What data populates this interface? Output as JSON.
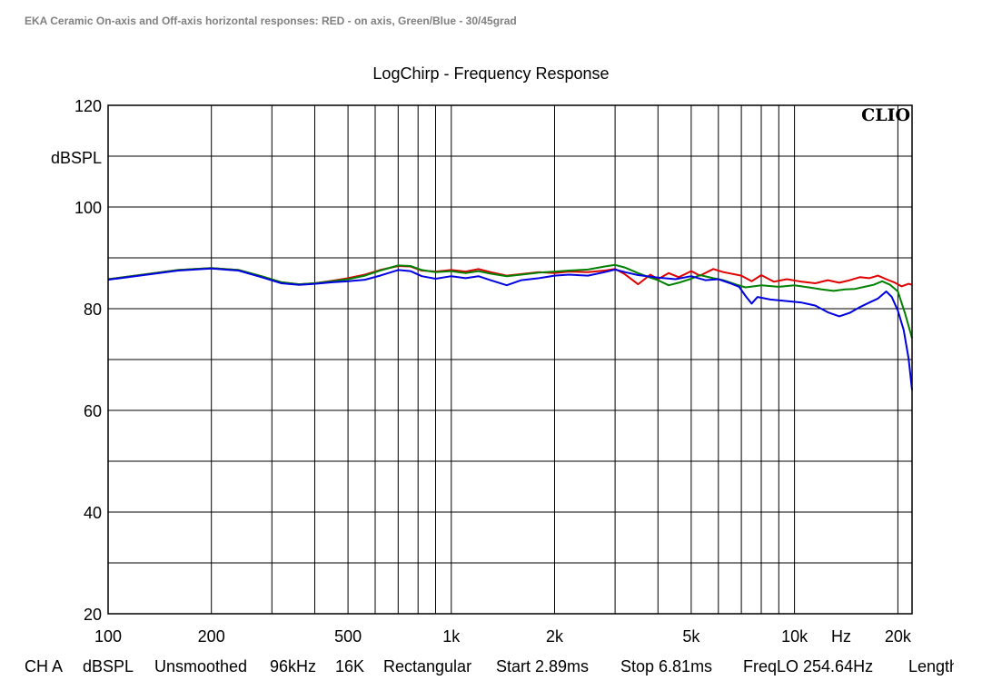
{
  "caption": "EKA Ceramic On-axis and Off-axis horizontal responses: RED - on axis, Green/Blue - 30/45grad",
  "logo_text": "CLIO",
  "chart_data": {
    "type": "line",
    "title": "LogChirp - Frequency Response",
    "ylabel": "dBSPL",
    "xlabel_unit": "Hz",
    "x_scale": "log",
    "xlim": [
      100,
      22000
    ],
    "ylim": [
      20,
      120
    ],
    "grid": true,
    "y_ticks": [
      20,
      40,
      60,
      80,
      100,
      120
    ],
    "x_ticks": [
      {
        "v": 100,
        "label": "100"
      },
      {
        "v": 200,
        "label": "200"
      },
      {
        "v": 500,
        "label": "500"
      },
      {
        "v": 1000,
        "label": "1k"
      },
      {
        "v": 2000,
        "label": "2k"
      },
      {
        "v": 5000,
        "label": "5k"
      },
      {
        "v": 10000,
        "label": "10k"
      },
      {
        "v": 20000,
        "label": "20k"
      }
    ],
    "x_gridlines": [
      100,
      200,
      300,
      400,
      500,
      600,
      700,
      800,
      900,
      1000,
      2000,
      3000,
      4000,
      5000,
      6000,
      7000,
      8000,
      9000,
      10000,
      20000
    ],
    "series": [
      {
        "color": "#e00000",
        "points": [
          [
            100,
            85.8
          ],
          [
            130,
            86.8
          ],
          [
            160,
            87.6
          ],
          [
            200,
            88.0
          ],
          [
            240,
            87.6
          ],
          [
            280,
            86.4
          ],
          [
            320,
            85.2
          ],
          [
            360,
            84.8
          ],
          [
            400,
            85.0
          ],
          [
            450,
            85.5
          ],
          [
            500,
            86.0
          ],
          [
            560,
            86.7
          ],
          [
            620,
            87.6
          ],
          [
            700,
            88.4
          ],
          [
            760,
            88.3
          ],
          [
            820,
            87.5
          ],
          [
            900,
            87.3
          ],
          [
            1000,
            87.6
          ],
          [
            1100,
            87.3
          ],
          [
            1200,
            87.8
          ],
          [
            1300,
            87.2
          ],
          [
            1450,
            86.5
          ],
          [
            1600,
            86.8
          ],
          [
            1800,
            87.2
          ],
          [
            2000,
            87.0
          ],
          [
            2200,
            87.3
          ],
          [
            2500,
            87.2
          ],
          [
            2800,
            87.5
          ],
          [
            3000,
            87.8
          ],
          [
            3200,
            86.8
          ],
          [
            3500,
            84.8
          ],
          [
            3800,
            86.7
          ],
          [
            4000,
            85.8
          ],
          [
            4300,
            87.0
          ],
          [
            4600,
            86.2
          ],
          [
            5000,
            87.4
          ],
          [
            5300,
            86.5
          ],
          [
            5800,
            87.8
          ],
          [
            6200,
            87.2
          ],
          [
            7000,
            86.5
          ],
          [
            7500,
            85.4
          ],
          [
            8000,
            86.6
          ],
          [
            8700,
            85.3
          ],
          [
            9500,
            85.8
          ],
          [
            10500,
            85.3
          ],
          [
            11500,
            85.0
          ],
          [
            12500,
            85.6
          ],
          [
            13500,
            85.1
          ],
          [
            14500,
            85.6
          ],
          [
            15500,
            86.2
          ],
          [
            16500,
            86.0
          ],
          [
            17500,
            86.5
          ],
          [
            18500,
            85.8
          ],
          [
            19500,
            85.2
          ],
          [
            20500,
            84.4
          ],
          [
            21500,
            84.9
          ],
          [
            22000,
            84.7
          ]
        ]
      },
      {
        "color": "#008000",
        "points": [
          [
            100,
            85.8
          ],
          [
            130,
            86.8
          ],
          [
            160,
            87.6
          ],
          [
            200,
            88.0
          ],
          [
            240,
            87.6
          ],
          [
            280,
            86.4
          ],
          [
            320,
            85.2
          ],
          [
            360,
            84.8
          ],
          [
            400,
            85.0
          ],
          [
            450,
            85.4
          ],
          [
            500,
            85.8
          ],
          [
            560,
            86.5
          ],
          [
            620,
            87.5
          ],
          [
            700,
            88.5
          ],
          [
            760,
            88.4
          ],
          [
            820,
            87.6
          ],
          [
            900,
            87.2
          ],
          [
            1000,
            87.4
          ],
          [
            1100,
            87.0
          ],
          [
            1200,
            87.4
          ],
          [
            1300,
            86.9
          ],
          [
            1450,
            86.4
          ],
          [
            1600,
            86.7
          ],
          [
            1800,
            87.1
          ],
          [
            2000,
            87.3
          ],
          [
            2200,
            87.5
          ],
          [
            2500,
            87.7
          ],
          [
            2800,
            88.3
          ],
          [
            3000,
            88.6
          ],
          [
            3200,
            88.1
          ],
          [
            3500,
            87.0
          ],
          [
            3800,
            86.1
          ],
          [
            4000,
            85.6
          ],
          [
            4300,
            84.6
          ],
          [
            4600,
            85.1
          ],
          [
            5000,
            85.9
          ],
          [
            5300,
            86.6
          ],
          [
            5800,
            86.0
          ],
          [
            6200,
            85.6
          ],
          [
            6800,
            84.7
          ],
          [
            7200,
            84.2
          ],
          [
            7600,
            84.4
          ],
          [
            8000,
            84.6
          ],
          [
            9000,
            84.3
          ],
          [
            10000,
            84.6
          ],
          [
            11000,
            84.2
          ],
          [
            12000,
            83.8
          ],
          [
            13000,
            83.5
          ],
          [
            14000,
            83.8
          ],
          [
            15000,
            83.9
          ],
          [
            16000,
            84.3
          ],
          [
            17000,
            84.7
          ],
          [
            18000,
            85.4
          ],
          [
            19000,
            84.7
          ],
          [
            20000,
            83.4
          ],
          [
            21000,
            79.0
          ],
          [
            22000,
            74.2
          ]
        ]
      },
      {
        "color": "#0000e0",
        "points": [
          [
            100,
            85.7
          ],
          [
            130,
            86.7
          ],
          [
            160,
            87.5
          ],
          [
            200,
            87.9
          ],
          [
            240,
            87.5
          ],
          [
            280,
            86.2
          ],
          [
            320,
            85.0
          ],
          [
            360,
            84.7
          ],
          [
            400,
            84.9
          ],
          [
            450,
            85.2
          ],
          [
            500,
            85.4
          ],
          [
            560,
            85.7
          ],
          [
            620,
            86.5
          ],
          [
            700,
            87.6
          ],
          [
            760,
            87.4
          ],
          [
            820,
            86.4
          ],
          [
            900,
            85.9
          ],
          [
            1000,
            86.4
          ],
          [
            1100,
            86.0
          ],
          [
            1200,
            86.4
          ],
          [
            1300,
            85.6
          ],
          [
            1450,
            84.6
          ],
          [
            1600,
            85.6
          ],
          [
            1800,
            86.0
          ],
          [
            2000,
            86.5
          ],
          [
            2200,
            86.7
          ],
          [
            2500,
            86.5
          ],
          [
            2800,
            87.2
          ],
          [
            3000,
            87.7
          ],
          [
            3200,
            87.2
          ],
          [
            3500,
            86.6
          ],
          [
            4000,
            86.1
          ],
          [
            4500,
            85.8
          ],
          [
            5000,
            86.4
          ],
          [
            5500,
            85.6
          ],
          [
            6000,
            85.8
          ],
          [
            6500,
            85.0
          ],
          [
            6900,
            84.3
          ],
          [
            7200,
            82.5
          ],
          [
            7500,
            81.0
          ],
          [
            7800,
            82.3
          ],
          [
            8500,
            81.8
          ],
          [
            9500,
            81.5
          ],
          [
            10500,
            81.2
          ],
          [
            11500,
            80.6
          ],
          [
            12500,
            79.3
          ],
          [
            13500,
            78.5
          ],
          [
            14500,
            79.2
          ],
          [
            15500,
            80.3
          ],
          [
            16500,
            81.2
          ],
          [
            17500,
            82.0
          ],
          [
            18500,
            83.4
          ],
          [
            19200,
            82.3
          ],
          [
            20000,
            79.6
          ],
          [
            20800,
            75.8
          ],
          [
            21500,
            70.2
          ],
          [
            22000,
            64.0
          ]
        ]
      }
    ]
  },
  "status_bar": {
    "channel": "CH A",
    "units": "dBSPL",
    "smoothing": "Unsmoothed",
    "sample_rate": "96kHz",
    "fft_size": "16K",
    "window": "Rectangular",
    "start": "Start 2.89ms",
    "stop": "Stop 6.81ms",
    "freq_lo": "FreqLO 254.64Hz",
    "length": "Length"
  }
}
